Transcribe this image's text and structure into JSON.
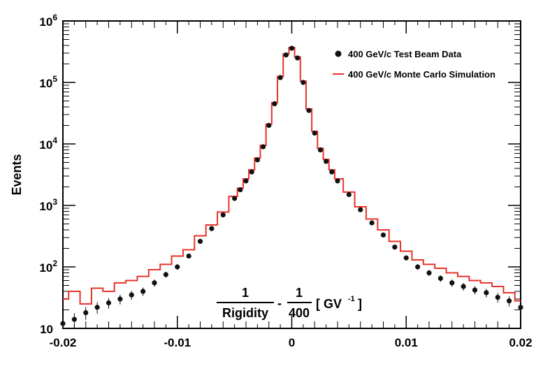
{
  "chart_data": {
    "type": "scatter",
    "title": "",
    "ylabel": "Events",
    "xlabel": {
      "frac1_num": "1",
      "frac1_den": "Rigidity",
      "minus": "-",
      "frac2_num": "1",
      "frac2_den": "400",
      "unit": "[ GV",
      "unit_sup": "-1",
      "unit_close": "]"
    },
    "xlim": [
      -0.02,
      0.02
    ],
    "ylim": [
      10,
      1000000
    ],
    "yscale": "log",
    "x_ticks": [
      "-0.02",
      "-0.01",
      "0",
      "0.01",
      "0.02"
    ],
    "y_ticks": [
      {
        "value": 10,
        "base": "10",
        "exp": ""
      },
      {
        "value": 100,
        "base": "10",
        "exp": "2"
      },
      {
        "value": 1000,
        "base": "10",
        "exp": "3"
      },
      {
        "value": 10000,
        "base": "10",
        "exp": "4"
      },
      {
        "value": 100000,
        "base": "10",
        "exp": "5"
      },
      {
        "value": 1000000,
        "base": "10",
        "exp": "6"
      }
    ],
    "legend_position": "top-right",
    "series": [
      {
        "name": "400 GeV/c Test Beam Data",
        "kind": "points",
        "color": "#111111",
        "x": [
          -0.02,
          -0.019,
          -0.018,
          -0.017,
          -0.016,
          -0.015,
          -0.014,
          -0.013,
          -0.012,
          -0.011,
          -0.01,
          -0.009,
          -0.008,
          -0.007,
          -0.006,
          -0.005,
          -0.0045,
          -0.004,
          -0.0035,
          -0.003,
          -0.0025,
          -0.002,
          -0.0015,
          -0.001,
          -0.0005,
          0,
          0.0005,
          0.001,
          0.0015,
          0.002,
          0.0025,
          0.003,
          0.0035,
          0.004,
          0.005,
          0.006,
          0.007,
          0.008,
          0.009,
          0.01,
          0.011,
          0.012,
          0.013,
          0.014,
          0.015,
          0.016,
          0.017,
          0.018,
          0.019,
          0.02
        ],
        "y": [
          12,
          14,
          18,
          22,
          26,
          30,
          35,
          40,
          55,
          75,
          100,
          150,
          260,
          420,
          700,
          1300,
          1800,
          2500,
          3500,
          5500,
          9000,
          20000,
          45000,
          120000,
          280000,
          360000,
          250000,
          100000,
          35000,
          15000,
          8000,
          5200,
          3500,
          2500,
          1500,
          850,
          520,
          330,
          210,
          140,
          100,
          80,
          65,
          55,
          48,
          42,
          38,
          32,
          28,
          22
        ]
      },
      {
        "name": "400 GeV/c Monte Carlo Simulation",
        "kind": "step",
        "color": "#e8332a",
        "x": [
          -0.02,
          -0.019,
          -0.018,
          -0.017,
          -0.016,
          -0.015,
          -0.014,
          -0.013,
          -0.012,
          -0.011,
          -0.01,
          -0.009,
          -0.008,
          -0.007,
          -0.006,
          -0.005,
          -0.0045,
          -0.004,
          -0.0035,
          -0.003,
          -0.0025,
          -0.002,
          -0.0015,
          -0.001,
          -0.0005,
          0,
          0.0005,
          0.001,
          0.0015,
          0.002,
          0.0025,
          0.003,
          0.0035,
          0.004,
          0.005,
          0.006,
          0.007,
          0.008,
          0.009,
          0.01,
          0.011,
          0.012,
          0.013,
          0.014,
          0.015,
          0.016,
          0.017,
          0.018,
          0.019,
          0.02
        ],
        "y": [
          30,
          40,
          25,
          45,
          40,
          55,
          60,
          70,
          90,
          110,
          150,
          190,
          320,
          480,
          780,
          1400,
          1900,
          2700,
          3800,
          5900,
          9500,
          21000,
          47000,
          125000,
          290000,
          370000,
          260000,
          105000,
          37000,
          16000,
          8500,
          5600,
          3800,
          2700,
          1650,
          950,
          600,
          400,
          260,
          180,
          130,
          110,
          95,
          80,
          70,
          60,
          55,
          48,
          38,
          28
        ]
      }
    ]
  }
}
